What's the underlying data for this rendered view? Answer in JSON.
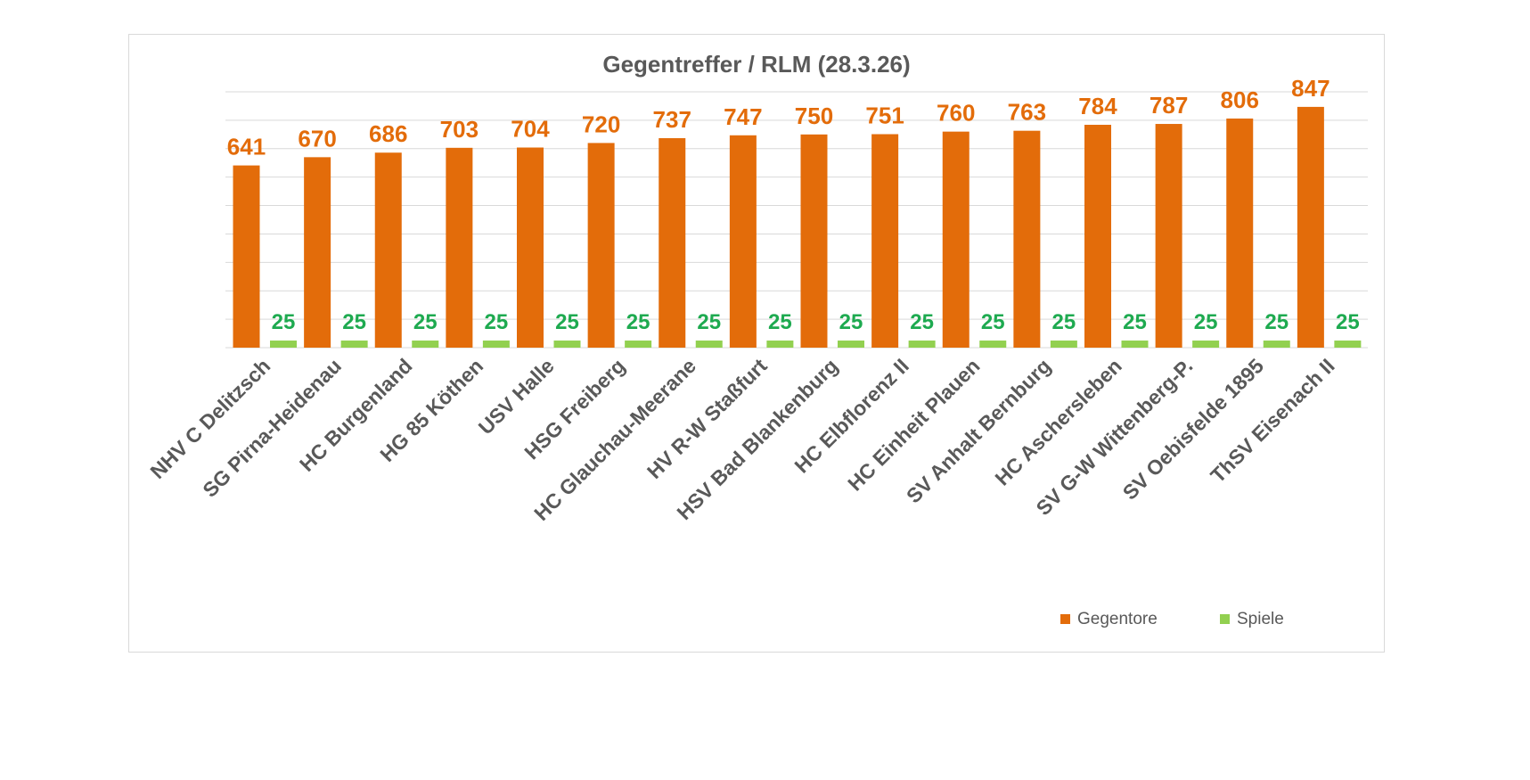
{
  "chart_data": {
    "type": "bar",
    "title": "Gegentreffer / RLM (28.3.26)",
    "categories": [
      "NHV C Delitzsch",
      "SG Pirna-Heidenau",
      "HC Burgenland",
      "HG 85 Köthen",
      "USV Halle",
      "HSG Freiberg",
      "HC Glauchau-Meerane",
      "HV R-W Staßfurt",
      "HSV Bad Blankenburg",
      "HC Elbflorenz II",
      "HC Einheit Plauen",
      "SV Anhalt Bernburg",
      "HC Aschersleben",
      "SV G-W Wittenberg-P.",
      "SV Oebisfelde 1895",
      "ThSV Eisenach II"
    ],
    "series": [
      {
        "name": "Gegentore",
        "color": "#e36c0a",
        "values": [
          641,
          670,
          686,
          703,
          704,
          720,
          737,
          747,
          750,
          751,
          760,
          763,
          784,
          787,
          806,
          847
        ]
      },
      {
        "name": "Spiele",
        "color": "#92d050",
        "values": [
          25,
          25,
          25,
          25,
          25,
          25,
          25,
          25,
          25,
          25,
          25,
          25,
          25,
          25,
          25,
          25
        ]
      }
    ],
    "ylim": [
      0,
      900
    ],
    "grid": true,
    "legend_position": "bottom-right",
    "data_labels": true
  }
}
